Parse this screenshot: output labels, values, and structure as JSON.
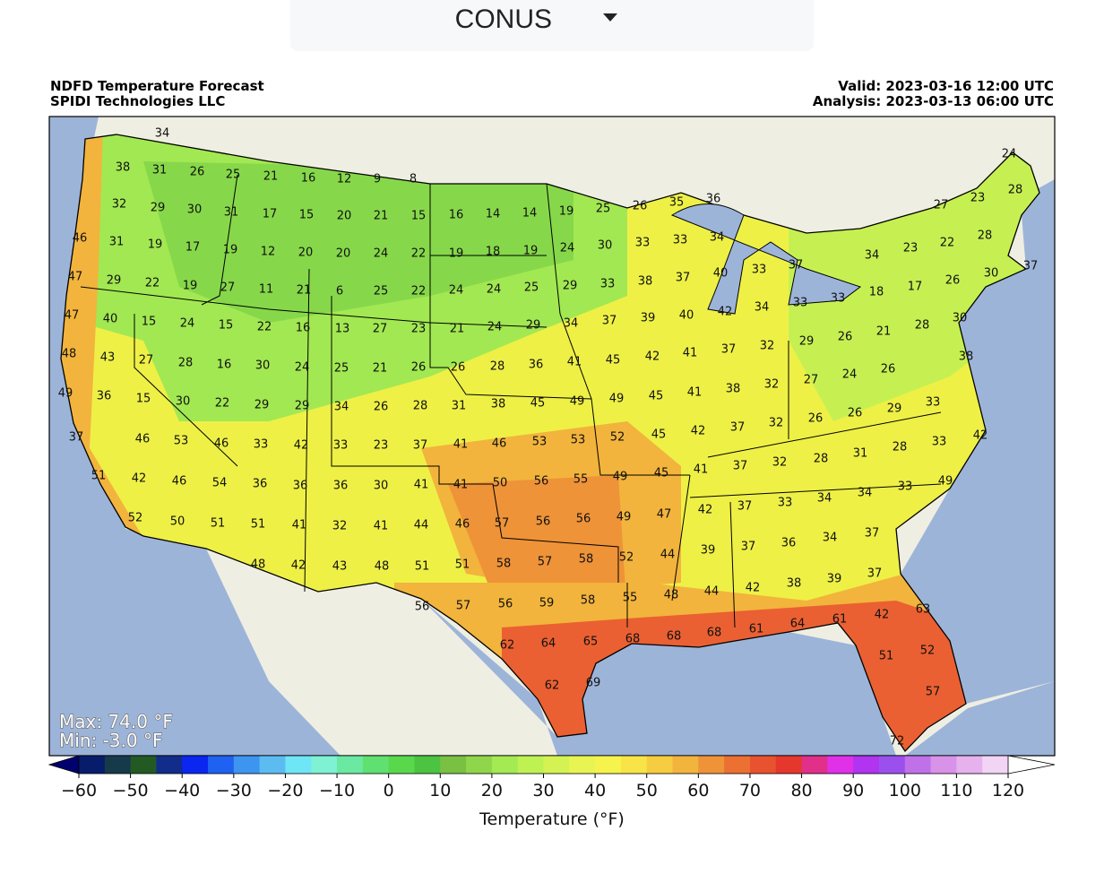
{
  "dropdown": {
    "label": "CONUS"
  },
  "header": {
    "title": "NDFD Temperature Forecast",
    "credit": "SPIDI Technologies LLC",
    "valid": "Valid: 2023-03-16 12:00 UTC",
    "analysis": "Analysis: 2023-03-13 06:00 UTC"
  },
  "map": {
    "stats": [
      "Max: 74.0 °F",
      "Min: -3.0 °F"
    ],
    "point_labels": [
      34,
      38,
      31,
      26,
      25,
      21,
      16,
      12,
      9,
      8,
      24,
      32,
      29,
      30,
      31,
      17,
      15,
      20,
      21,
      15,
      16,
      14,
      14,
      19,
      25,
      26,
      35,
      36,
      27,
      23,
      28,
      46,
      31,
      19,
      17,
      19,
      12,
      20,
      20,
      24,
      22,
      19,
      18,
      19,
      24,
      30,
      33,
      33,
      34,
      23,
      22,
      28,
      34,
      47,
      29,
      22,
      19,
      27,
      11,
      21,
      6,
      25,
      22,
      24,
      24,
      25,
      29,
      33,
      38,
      37,
      40,
      33,
      37,
      18,
      17,
      26,
      30,
      37,
      47,
      40,
      15,
      24,
      15,
      22,
      16,
      13,
      27,
      23,
      21,
      24,
      29,
      34,
      37,
      39,
      40,
      42,
      34,
      33,
      33,
      29,
      26,
      21,
      28,
      30,
      48,
      43,
      27,
      28,
      16,
      30,
      24,
      25,
      21,
      26,
      26,
      28,
      36,
      41,
      45,
      42,
      41,
      37,
      32,
      24,
      26,
      38,
      49,
      36,
      15,
      30,
      22,
      29,
      29,
      34,
      26,
      28,
      31,
      38,
      45,
      49,
      49,
      45,
      41,
      38,
      32,
      27,
      26,
      29,
      33,
      37,
      46,
      53,
      46,
      33,
      42,
      33,
      23,
      37,
      41,
      46,
      53,
      53,
      52,
      45,
      42,
      37,
      32,
      26,
      28,
      33,
      42,
      31,
      28,
      51,
      42,
      46,
      54,
      36,
      36,
      36,
      30,
      41,
      41,
      50,
      56,
      55,
      49,
      45,
      41,
      37,
      32,
      34,
      33,
      49,
      52,
      50,
      51,
      51,
      41,
      32,
      41,
      44,
      46,
      57,
      56,
      56,
      49,
      47,
      42,
      37,
      33,
      34,
      37,
      48,
      42,
      43,
      48,
      51,
      51,
      58,
      57,
      58,
      52,
      44,
      39,
      37,
      36,
      34,
      37,
      56,
      57,
      56,
      59,
      58,
      55,
      48,
      44,
      42,
      38,
      39,
      42,
      63,
      62,
      64,
      65,
      68,
      68,
      68,
      61,
      64,
      61,
      51,
      52,
      62,
      69,
      57,
      72
    ]
  },
  "colorbar": {
    "label": "Temperature (°F)",
    "lim": [
      -60,
      120
    ],
    "ticks": [
      {
        "value": -60,
        "label": "−60"
      },
      {
        "value": -50,
        "label": "−50"
      },
      {
        "value": -40,
        "label": "−40"
      },
      {
        "value": -30,
        "label": "−30"
      },
      {
        "value": -20,
        "label": "−20"
      },
      {
        "value": -10,
        "label": "−10"
      },
      0,
      10,
      20,
      30,
      40,
      50,
      60,
      70,
      80,
      90,
      100,
      110,
      120
    ],
    "colors": [
      "#071d6b",
      "#163a4a",
      "#235a24",
      "#122c8c",
      "#0a26f0",
      "#1f62f2",
      "#3e95f0",
      "#5cbcf2",
      "#6fe6f6",
      "#7ef2d2",
      "#6be8a2",
      "#5fe070",
      "#5ad84c",
      "#4cc442",
      "#7ac043",
      "#8fd64a",
      "#a4ea52",
      "#bef252",
      "#d4f252",
      "#e8f452",
      "#f6f44c",
      "#f8e446",
      "#f6cc40",
      "#f2b43c",
      "#ee9338",
      "#eb7032",
      "#e8522e",
      "#e6372c",
      "#e0308a",
      "#e030e8",
      "#b034f0",
      "#9b50ee",
      "#c070e8",
      "#d892e8",
      "#e6b2ee",
      "#f2d4f4"
    ],
    "under_color": "#00006e",
    "over_color": "#ffffff"
  }
}
